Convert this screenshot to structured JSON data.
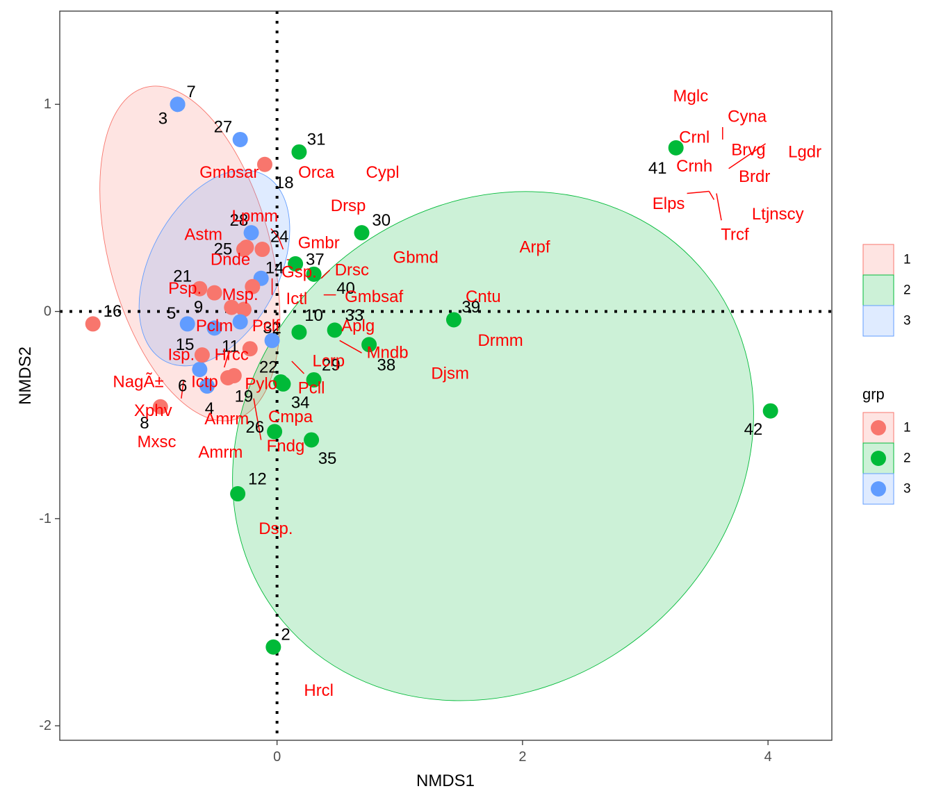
{
  "chart_data": {
    "type": "scatter",
    "xlabel": "NMDS1",
    "ylabel": "NMDS2",
    "xlim": [
      -1.77,
      4.52
    ],
    "ylim": [
      -2.07,
      1.45
    ],
    "x_ticks": [
      0,
      2,
      4
    ],
    "y_ticks": [
      -2,
      -1,
      0,
      1
    ],
    "reference_lines": [
      {
        "axis": "x",
        "value": 0,
        "style": "dotted"
      },
      {
        "axis": "y",
        "value": 0,
        "style": "dotted"
      }
    ],
    "grid": false,
    "legend_title": "grp",
    "legend_position": "right",
    "groups": [
      {
        "name": "1",
        "color": "#F8766D"
      },
      {
        "name": "2",
        "color": "#00BA38"
      },
      {
        "name": "3",
        "color": "#619CFF"
      }
    ],
    "ellipses": [
      {
        "group": "1",
        "cx": -0.71,
        "cy": 0.28,
        "rx": 0.66,
        "ry": 0.83,
        "angle": -15
      },
      {
        "group": "2",
        "cx": 1.76,
        "cy": -0.65,
        "rx": 2.23,
        "ry": 1.16,
        "angle": -40
      },
      {
        "group": "3",
        "cx": -0.51,
        "cy": 0.21,
        "rx": 0.86,
        "ry": 0.31,
        "angle": -62
      }
    ],
    "sites": [
      {
        "id": "2",
        "group": "2",
        "x": -0.03,
        "y": -1.62
      },
      {
        "id": "3",
        "group": "3",
        "x": -0.81,
        "y": 1.0
      },
      {
        "id": "4",
        "group": "3",
        "x": -0.57,
        "y": -0.36
      },
      {
        "id": "5",
        "group": "3",
        "x": -0.73,
        "y": -0.06
      },
      {
        "id": "6",
        "group": "3",
        "x": -0.63,
        "y": -0.28
      },
      {
        "id": "7",
        "group": "3",
        "x": -0.81,
        "y": 1.0
      },
      {
        "id": "8",
        "group": "1",
        "x": -0.95,
        "y": -0.46
      },
      {
        "id": "9",
        "group": "1",
        "x": -0.51,
        "y": 0.09
      },
      {
        "id": "10",
        "group": "2",
        "x": 0.18,
        "y": -0.1
      },
      {
        "id": "11",
        "group": "1",
        "x": -0.22,
        "y": -0.18
      },
      {
        "id": "12",
        "group": "2",
        "x": -0.32,
        "y": -0.88
      },
      {
        "id": "14",
        "group": "3",
        "x": -0.13,
        "y": 0.16
      },
      {
        "id": "15",
        "group": "1",
        "x": -0.61,
        "y": -0.21
      },
      {
        "id": "16",
        "group": "1",
        "x": -1.5,
        "y": -0.06
      },
      {
        "id": "18",
        "group": "1",
        "x": -0.1,
        "y": 0.71
      },
      {
        "id": "19",
        "group": "1",
        "x": -0.4,
        "y": -0.32
      },
      {
        "id": "21",
        "group": "1",
        "x": -0.63,
        "y": 0.11
      },
      {
        "id": "22",
        "group": "2",
        "x": 0.05,
        "y": -0.35
      },
      {
        "id": "24",
        "group": "1",
        "x": -0.12,
        "y": 0.3
      },
      {
        "id": "25",
        "group": "1",
        "x": -0.25,
        "y": 0.31
      },
      {
        "id": "26",
        "group": "2",
        "x": -0.02,
        "y": -0.58
      },
      {
        "id": "27",
        "group": "3",
        "x": -0.3,
        "y": 0.83
      },
      {
        "id": "28",
        "group": "3",
        "x": -0.21,
        "y": 0.38
      },
      {
        "id": "29",
        "group": "2",
        "x": 0.3,
        "y": -0.33
      },
      {
        "id": "30",
        "group": "2",
        "x": 0.69,
        "y": 0.38
      },
      {
        "id": "31",
        "group": "2",
        "x": 0.18,
        "y": 0.77
      },
      {
        "id": "32",
        "group": "3",
        "x": -0.04,
        "y": -0.14
      },
      {
        "id": "33",
        "group": "2",
        "x": 0.47,
        "y": -0.09
      },
      {
        "id": "34",
        "group": "2",
        "x": 0.03,
        "y": -0.34
      },
      {
        "id": "35",
        "group": "2",
        "x": 0.28,
        "y": -0.62
      },
      {
        "id": "37",
        "group": "2",
        "x": 0.15,
        "y": 0.23
      },
      {
        "id": "38",
        "group": "2",
        "x": 0.75,
        "y": -0.16
      },
      {
        "id": "39",
        "group": "2",
        "x": 1.44,
        "y": -0.04
      },
      {
        "id": "40",
        "group": "2",
        "x": 0.3,
        "y": 0.18
      },
      {
        "id": "41",
        "group": "2",
        "x": 3.25,
        "y": 0.79
      },
      {
        "id": "42",
        "group": "2",
        "x": 4.02,
        "y": -0.48
      },
      {
        "id": "",
        "group": "1",
        "x": -0.37,
        "y": 0.02
      },
      {
        "id": "",
        "group": "1",
        "x": -0.27,
        "y": 0.01
      },
      {
        "id": "",
        "group": "1",
        "x": -0.2,
        "y": 0.12
      },
      {
        "id": "",
        "group": "1",
        "x": -0.35,
        "y": -0.31
      },
      {
        "id": "",
        "group": "1",
        "x": -0.27,
        "y": 0.3
      },
      {
        "id": "",
        "group": "3",
        "x": -0.3,
        "y": -0.05
      },
      {
        "id": "",
        "group": "3",
        "x": -0.51,
        "y": -0.08
      }
    ],
    "site_label_positions": [
      {
        "id": "2",
        "x": 0.07,
        "y": -1.56
      },
      {
        "id": "3",
        "x": -0.93,
        "y": 0.93
      },
      {
        "id": "4",
        "x": -0.55,
        "y": -0.47
      },
      {
        "id": "5",
        "x": -0.86,
        "y": -0.01
      },
      {
        "id": "6",
        "x": -0.77,
        "y": -0.36
      },
      {
        "id": "7",
        "x": -0.7,
        "y": 1.06
      },
      {
        "id": "8",
        "x": -1.08,
        "y": -0.54
      },
      {
        "id": "9",
        "x": -0.64,
        "y": 0.02
      },
      {
        "id": "10",
        "x": 0.3,
        "y": -0.02
      },
      {
        "id": "11",
        "x": -0.38,
        "y": -0.17
      },
      {
        "id": "12",
        "x": -0.16,
        "y": -0.81
      },
      {
        "id": "14",
        "x": -0.02,
        "y": 0.21
      },
      {
        "id": "15",
        "x": -0.75,
        "y": -0.16
      },
      {
        "id": "16",
        "x": -1.34,
        "y": 0.0
      },
      {
        "id": "18",
        "x": 0.06,
        "y": 0.62
      },
      {
        "id": "19",
        "x": -0.27,
        "y": -0.41
      },
      {
        "id": "21",
        "x": -0.77,
        "y": 0.17
      },
      {
        "id": "22",
        "x": -0.07,
        "y": -0.27
      },
      {
        "id": "24",
        "x": 0.02,
        "y": 0.36
      },
      {
        "id": "25",
        "x": -0.44,
        "y": 0.3
      },
      {
        "id": "26",
        "x": -0.18,
        "y": -0.56
      },
      {
        "id": "27",
        "x": -0.44,
        "y": 0.89
      },
      {
        "id": "28",
        "x": -0.31,
        "y": 0.44
      },
      {
        "id": "29",
        "x": 0.44,
        "y": -0.26
      },
      {
        "id": "30",
        "x": 0.85,
        "y": 0.44
      },
      {
        "id": "31",
        "x": 0.32,
        "y": 0.83
      },
      {
        "id": "32",
        "x": -0.04,
        "y": -0.08
      },
      {
        "id": "33",
        "x": 0.63,
        "y": -0.02
      },
      {
        "id": "34",
        "x": 0.19,
        "y": -0.44
      },
      {
        "id": "35",
        "x": 0.41,
        "y": -0.71
      },
      {
        "id": "37",
        "x": 0.31,
        "y": 0.25
      },
      {
        "id": "38",
        "x": 0.89,
        "y": -0.26
      },
      {
        "id": "39",
        "x": 1.58,
        "y": 0.02
      },
      {
        "id": "40",
        "x": 0.56,
        "y": 0.11
      },
      {
        "id": "41",
        "x": 3.1,
        "y": 0.69
      },
      {
        "id": "42",
        "x": 3.88,
        "y": -0.57
      }
    ],
    "species": [
      {
        "label": "Mglc",
        "x": 3.37,
        "y": 1.04
      },
      {
        "label": "Cyna",
        "x": 3.83,
        "y": 0.94
      },
      {
        "label": "Crnl",
        "x": 3.4,
        "y": 0.84
      },
      {
        "label": "Brvg",
        "x": 3.84,
        "y": 0.78
      },
      {
        "label": "Lgdr",
        "x": 4.3,
        "y": 0.77
      },
      {
        "label": "Crnh",
        "x": 3.4,
        "y": 0.7
      },
      {
        "label": "Brdr",
        "x": 3.89,
        "y": 0.65
      },
      {
        "label": "Elps",
        "x": 3.19,
        "y": 0.52
      },
      {
        "label": "Ltjnscy",
        "x": 4.08,
        "y": 0.47
      },
      {
        "label": "Trcf",
        "x": 3.73,
        "y": 0.37
      },
      {
        "label": "Gmbsar",
        "x": -0.39,
        "y": 0.67
      },
      {
        "label": "Orca",
        "x": 0.32,
        "y": 0.67
      },
      {
        "label": "Cypl",
        "x": 0.86,
        "y": 0.67
      },
      {
        "label": "Drsp",
        "x": 0.58,
        "y": 0.51
      },
      {
        "label": "Lpmm",
        "x": -0.18,
        "y": 0.46
      },
      {
        "label": "Astm",
        "x": -0.6,
        "y": 0.37
      },
      {
        "label": "Gmbr",
        "x": 0.34,
        "y": 0.33
      },
      {
        "label": "Gbmd",
        "x": 1.13,
        "y": 0.26
      },
      {
        "label": "Arpf",
        "x": 2.1,
        "y": 0.31
      },
      {
        "label": "Dnde",
        "x": -0.38,
        "y": 0.25
      },
      {
        "label": "Drsc",
        "x": 0.61,
        "y": 0.2
      },
      {
        "label": "Gsp.",
        "x": 0.18,
        "y": 0.19
      },
      {
        "label": "Psp.",
        "x": -0.75,
        "y": 0.11
      },
      {
        "label": "Msp.",
        "x": -0.3,
        "y": 0.08
      },
      {
        "label": "Ictl",
        "x": 0.16,
        "y": 0.06
      },
      {
        "label": "Gmbsaf",
        "x": 0.79,
        "y": 0.07
      },
      {
        "label": "Cntu",
        "x": 1.68,
        "y": 0.07
      },
      {
        "label": "Pclm",
        "x": -0.51,
        "y": -0.07
      },
      {
        "label": "Pclf",
        "x": -0.09,
        "y": -0.07
      },
      {
        "label": "Aplg",
        "x": 0.66,
        "y": -0.07
      },
      {
        "label": "Drmm",
        "x": 1.82,
        "y": -0.14
      },
      {
        "label": "Isp.",
        "x": -0.78,
        "y": -0.21
      },
      {
        "label": "Hrcc",
        "x": -0.37,
        "y": -0.21
      },
      {
        "label": "Mndb",
        "x": 0.9,
        "y": -0.2
      },
      {
        "label": "Lcrp",
        "x": 0.42,
        "y": -0.24
      },
      {
        "label": "Djsm",
        "x": 1.41,
        "y": -0.3
      },
      {
        "label": "NagÃ±",
        "x": -1.13,
        "y": -0.34
      },
      {
        "label": "Ictp",
        "x": -0.59,
        "y": -0.34
      },
      {
        "label": "Pylo",
        "x": -0.13,
        "y": -0.35
      },
      {
        "label": "Pcll",
        "x": 0.28,
        "y": -0.37
      },
      {
        "label": "Xphv",
        "x": -1.01,
        "y": -0.48
      },
      {
        "label": "Amrm",
        "x": -0.41,
        "y": -0.52
      },
      {
        "label": "Cmpa",
        "x": 0.11,
        "y": -0.51
      },
      {
        "label": "Mxsc",
        "x": -0.98,
        "y": -0.63
      },
      {
        "label": "Fndg",
        "x": 0.07,
        "y": -0.65
      },
      {
        "label": "Amrm",
        "x": -0.46,
        "y": -0.68
      },
      {
        "label": "Dsp.",
        "x": -0.01,
        "y": -1.05
      },
      {
        "label": "Hrcl",
        "x": 0.34,
        "y": -1.83
      }
    ],
    "leader_lines": [
      {
        "x1": 3.63,
        "y1": 0.89,
        "x2": 3.63,
        "y2": 0.83
      },
      {
        "x1": 3.68,
        "y1": 0.69,
        "x2": 3.98,
        "y2": 0.81
      },
      {
        "x1": 3.34,
        "y1": 0.57,
        "x2": 3.52,
        "y2": 0.58
      },
      {
        "x1": 3.52,
        "y1": 0.58,
        "x2": 3.56,
        "y2": 0.54
      },
      {
        "x1": 3.58,
        "y1": 0.57,
        "x2": 3.62,
        "y2": 0.44
      },
      {
        "x1": -0.05,
        "y1": 0.4,
        "x2": 0.01,
        "y2": 0.36
      },
      {
        "x1": 0.01,
        "y1": 0.36,
        "x2": 0.05,
        "y2": 0.3
      },
      {
        "x1": 0.43,
        "y1": 0.2,
        "x2": 0.36,
        "y2": 0.16
      },
      {
        "x1": 0.38,
        "y1": 0.08,
        "x2": 0.48,
        "y2": 0.08
      },
      {
        "x1": 0.51,
        "y1": -0.14,
        "x2": 0.69,
        "y2": -0.2
      },
      {
        "x1": 0.12,
        "y1": -0.24,
        "x2": 0.22,
        "y2": -0.3
      },
      {
        "x1": -0.4,
        "y1": -0.21,
        "x2": -0.43,
        "y2": -0.27
      },
      {
        "x1": -0.78,
        "y1": -0.42,
        "x2": -0.76,
        "y2": -0.33
      },
      {
        "x1": -0.19,
        "y1": -0.42,
        "x2": -0.13,
        "y2": -0.62
      },
      {
        "x1": 0.16,
        "y1": 0.25,
        "x2": 0.08,
        "y2": 0.25
      },
      {
        "x1": -0.04,
        "y1": 0.16,
        "x2": -0.04,
        "y2": 0.08
      }
    ]
  }
}
